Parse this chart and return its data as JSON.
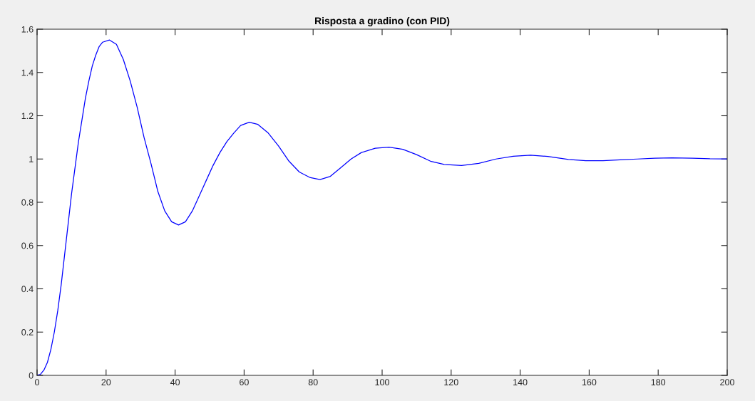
{
  "chart_data": {
    "type": "line",
    "title": "Risposta a gradino (con PID)",
    "grid": false,
    "marker": "none",
    "line_style": "solid",
    "x": [
      0,
      1,
      2,
      3,
      4,
      5,
      6,
      7,
      8,
      9,
      10,
      11,
      12,
      13,
      14,
      15,
      16,
      17,
      18,
      19,
      21,
      23,
      25,
      27,
      29,
      31,
      33,
      35,
      37,
      39,
      41,
      43,
      45,
      47,
      49,
      51,
      53,
      55,
      57,
      59,
      61.5,
      64,
      67,
      70,
      73,
      76,
      79,
      82,
      85,
      88,
      91,
      94,
      98,
      102,
      106,
      110,
      114,
      118,
      123,
      128,
      133,
      138,
      143,
      148,
      154,
      159,
      164,
      169,
      174,
      179,
      184,
      190,
      195,
      200
    ],
    "series": [
      {
        "color": "#0000ff",
        "values": [
          0,
          0.005,
          0.025,
          0.06,
          0.12,
          0.2,
          0.3,
          0.42,
          0.56,
          0.7,
          0.84,
          0.96,
          1.08,
          1.18,
          1.28,
          1.36,
          1.43,
          1.48,
          1.52,
          1.54,
          1.55,
          1.53,
          1.46,
          1.36,
          1.24,
          1.1,
          0.98,
          0.85,
          0.76,
          0.71,
          0.695,
          0.71,
          0.76,
          0.83,
          0.9,
          0.97,
          1.03,
          1.08,
          1.12,
          1.155,
          1.17,
          1.16,
          1.12,
          1.06,
          0.99,
          0.94,
          0.915,
          0.905,
          0.92,
          0.96,
          1.0,
          1.03,
          1.05,
          1.055,
          1.045,
          1.02,
          0.99,
          0.975,
          0.97,
          0.98,
          1.0,
          1.013,
          1.018,
          1.012,
          0.998,
          0.992,
          0.992,
          0.996,
          1.0,
          1.004,
          1.005,
          1.004,
          1.001,
          1.0
        ]
      }
    ],
    "xlim": [
      0,
      200
    ],
    "xticks": [
      0,
      20,
      40,
      60,
      80,
      100,
      120,
      140,
      160,
      180,
      200
    ],
    "ylim": [
      0,
      1.6
    ],
    "yticks": [
      0,
      0.2,
      0.4,
      0.6,
      0.8,
      1,
      1.2,
      1.4,
      1.6
    ]
  }
}
